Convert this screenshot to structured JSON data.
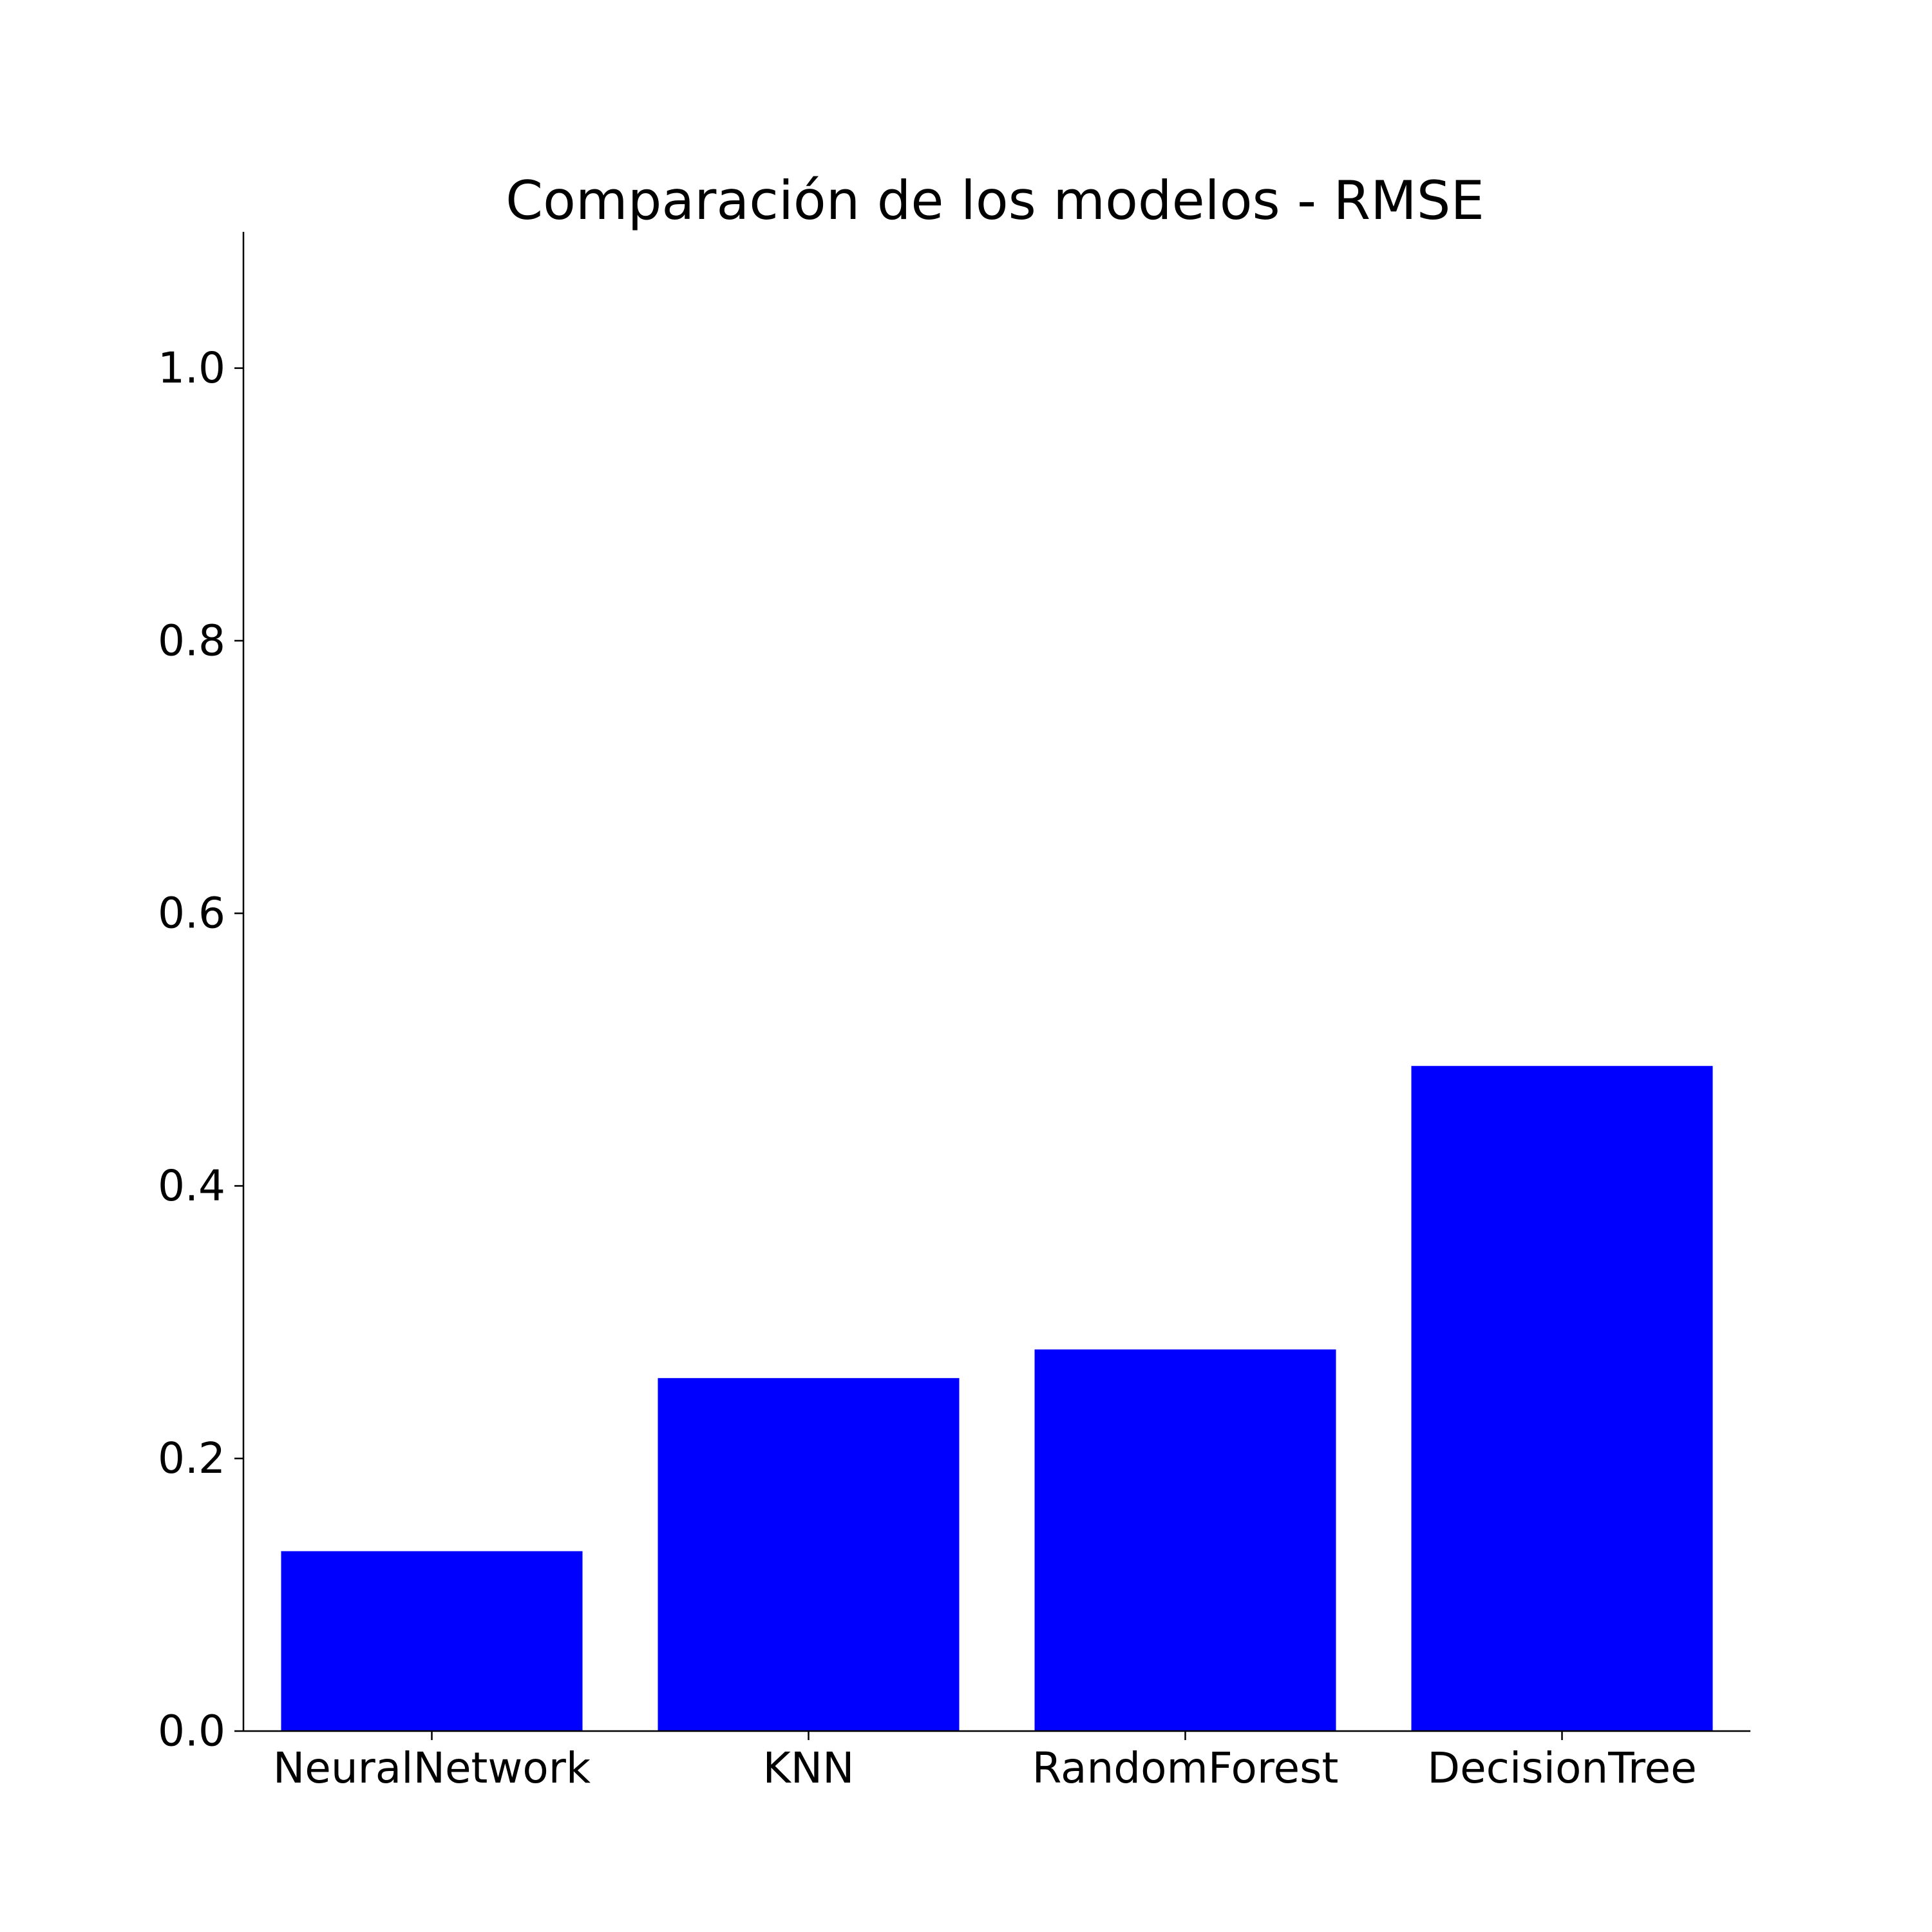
{
  "chart_data": {
    "type": "bar",
    "title": "Comparación de los modelos - RMSE",
    "xlabel": "",
    "ylabel": "",
    "categories": [
      "NeuralNetwork",
      "KNN",
      "RandomForest",
      "DecisionTree"
    ],
    "values": [
      0.132,
      0.259,
      0.28,
      0.488
    ],
    "ylim": [
      0,
      1.1
    ],
    "yticks": [
      0.0,
      0.2,
      0.4,
      0.6,
      0.8,
      1.0
    ],
    "ytick_labels": [
      "0.0",
      "0.2",
      "0.4",
      "0.6",
      "0.8",
      "1.0"
    ],
    "bar_color": "#0000ff",
    "grid": false,
    "legend": "none"
  }
}
